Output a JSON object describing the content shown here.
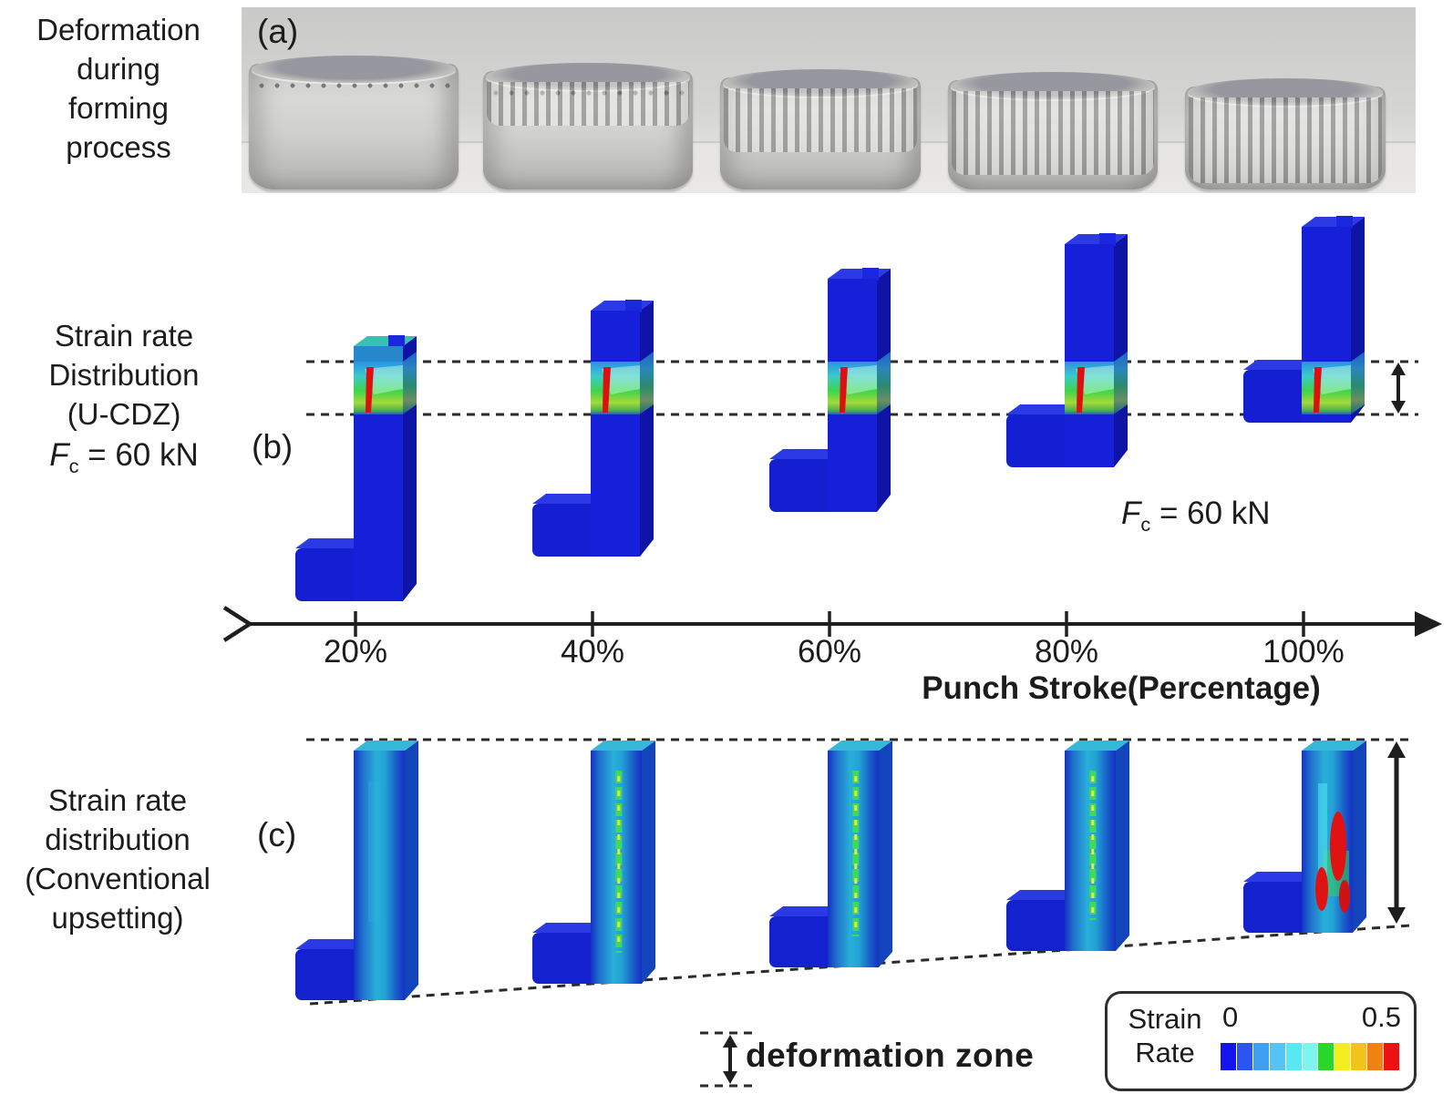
{
  "panel_a": {
    "tag": "(a)",
    "title_lines": [
      "Deformation",
      "during",
      "forming",
      "process"
    ]
  },
  "panel_b": {
    "tag": "(b)",
    "title_lines": [
      "Strain rate",
      "Distribution",
      "(U-CDZ)"
    ],
    "force_label": {
      "symbol": "F",
      "subscript": "c",
      "rest": " = 60 kN"
    }
  },
  "panel_c": {
    "tag": "(c)",
    "title_lines": [
      "Strain rate",
      "distribution",
      "(Conventional",
      "upsetting)"
    ]
  },
  "axis": {
    "title": "Punch Stroke(Percentage)",
    "tick_labels": [
      "20%",
      "40%",
      "60%",
      "80%",
      "100%"
    ]
  },
  "annotations": {
    "force_label": {
      "symbol": "F",
      "subscript": "c",
      "rest": " = 60 kN"
    },
    "deformation_zone": "deformation zone"
  },
  "legend": {
    "label_lines": [
      "Strain",
      "Rate"
    ],
    "min": "0",
    "max": "0.5",
    "colorbar_colors": [
      "#1414f0",
      "#2a55f0",
      "#3f9ff2",
      "#55c3f5",
      "#57e9f2",
      "#7df5ee",
      "#2ad62a",
      "#f5ee1e",
      "#f2c318",
      "#ef8212",
      "#ee1111"
    ]
  }
}
